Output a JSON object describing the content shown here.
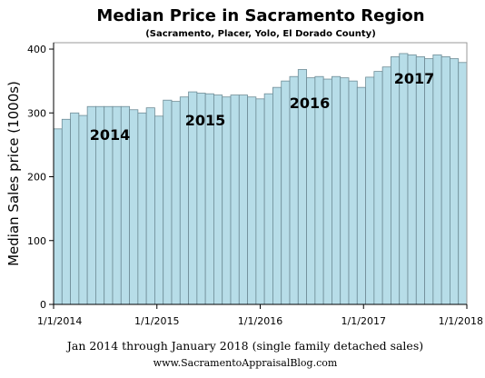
{
  "chart_data": {
    "type": "bar",
    "title": "Median Price in Sacramento Region",
    "subtitle": "(Sacramento, Placer, Yolo, El Dorado County)",
    "ylabel": "Median Sales price (1000s)",
    "xlabel": "Jan 2014 through January 2018 (single family detached sales)",
    "source": "www.SacramentoAppraisalBlog.com",
    "ylim": [
      0,
      410
    ],
    "yticks": [
      "0",
      "100",
      "200",
      "300",
      "400"
    ],
    "xticks": [
      "1/1/2014",
      "1/1/2015",
      "1/1/2016",
      "1/1/2017",
      "1/1/2018"
    ],
    "bar_color": "#b7dde8",
    "bar_edge_color": "#6e8c96",
    "grid": false,
    "legend": "none",
    "annotations": [
      "2014",
      "2015",
      "2016",
      "2017"
    ],
    "categories": [
      "2014-01",
      "2014-02",
      "2014-03",
      "2014-04",
      "2014-05",
      "2014-06",
      "2014-07",
      "2014-08",
      "2014-09",
      "2014-10",
      "2014-11",
      "2014-12",
      "2015-01",
      "2015-02",
      "2015-03",
      "2015-04",
      "2015-05",
      "2015-06",
      "2015-07",
      "2015-08",
      "2015-09",
      "2015-10",
      "2015-11",
      "2015-12",
      "2016-01",
      "2016-02",
      "2016-03",
      "2016-04",
      "2016-05",
      "2016-06",
      "2016-07",
      "2016-08",
      "2016-09",
      "2016-10",
      "2016-11",
      "2016-12",
      "2017-01",
      "2017-02",
      "2017-03",
      "2017-04",
      "2017-05",
      "2017-06",
      "2017-07",
      "2017-08",
      "2017-09",
      "2017-10",
      "2017-11",
      "2017-12",
      "2018-01"
    ],
    "values": [
      275,
      290,
      300,
      296,
      310,
      310,
      310,
      310,
      310,
      305,
      300,
      308,
      295,
      320,
      318,
      325,
      333,
      331,
      330,
      328,
      325,
      328,
      328,
      325,
      322,
      330,
      340,
      350,
      357,
      368,
      355,
      357,
      353,
      357,
      355,
      350,
      340,
      356,
      365,
      372,
      388,
      393,
      391,
      388,
      385,
      391,
      388,
      385,
      379
    ]
  }
}
